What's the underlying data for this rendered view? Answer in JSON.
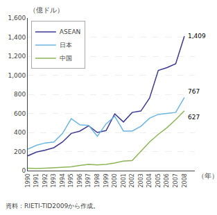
{
  "chart_data": {
    "type": "line",
    "x": [
      1990,
      1991,
      1992,
      1993,
      1994,
      1995,
      1996,
      1997,
      1998,
      1999,
      2000,
      2001,
      2002,
      2003,
      2004,
      2005,
      2006,
      2007,
      2008
    ],
    "series": [
      {
        "name": "ASEAN",
        "color": "#3b3894",
        "values": [
          155,
          195,
          215,
          240,
          300,
          390,
          415,
          470,
          400,
          420,
          595,
          510,
          610,
          625,
          760,
          1050,
          1080,
          1120,
          1409
        ]
      },
      {
        "name": "日本",
        "color": "#6bb5e0",
        "values": [
          225,
          265,
          290,
          300,
          390,
          545,
          480,
          475,
          360,
          490,
          570,
          415,
          415,
          465,
          550,
          590,
          600,
          610,
          767
        ]
      },
      {
        "name": "中国",
        "color": "#8db558",
        "values": [
          25,
          22,
          25,
          30,
          35,
          40,
          55,
          65,
          60,
          65,
          80,
          100,
          105,
          200,
          300,
          380,
          450,
          535,
          627
        ]
      }
    ],
    "annotations": [
      {
        "text": "1,409",
        "x": 2008,
        "y": 1409
      },
      {
        "text": "767",
        "x": 2008,
        "y": 767
      },
      {
        "text": "627",
        "x": 2008,
        "y": 627
      }
    ],
    "y_label": "（億ドル）",
    "x_label": "（年）",
    "source": "資料：RIETI-TID2009から作成。",
    "xlim": [
      1990,
      2009.2
    ],
    "xticks": [
      1990,
      1991,
      1992,
      1993,
      1994,
      1995,
      1996,
      1997,
      1998,
      1999,
      2000,
      2001,
      2002,
      2003,
      2004,
      2005,
      2006,
      2007,
      2008
    ],
    "ylim": [
      0,
      1600
    ],
    "yticks": [
      0,
      200,
      400,
      600,
      800,
      {
        "value": 1000,
        "label": "1,000"
      },
      {
        "value": 1200,
        "label": "1,200"
      },
      {
        "value": 1400,
        "label": "1,400"
      },
      {
        "value": 1600,
        "label": "1,600"
      }
    ],
    "grid": "y",
    "legend": "upper left"
  }
}
